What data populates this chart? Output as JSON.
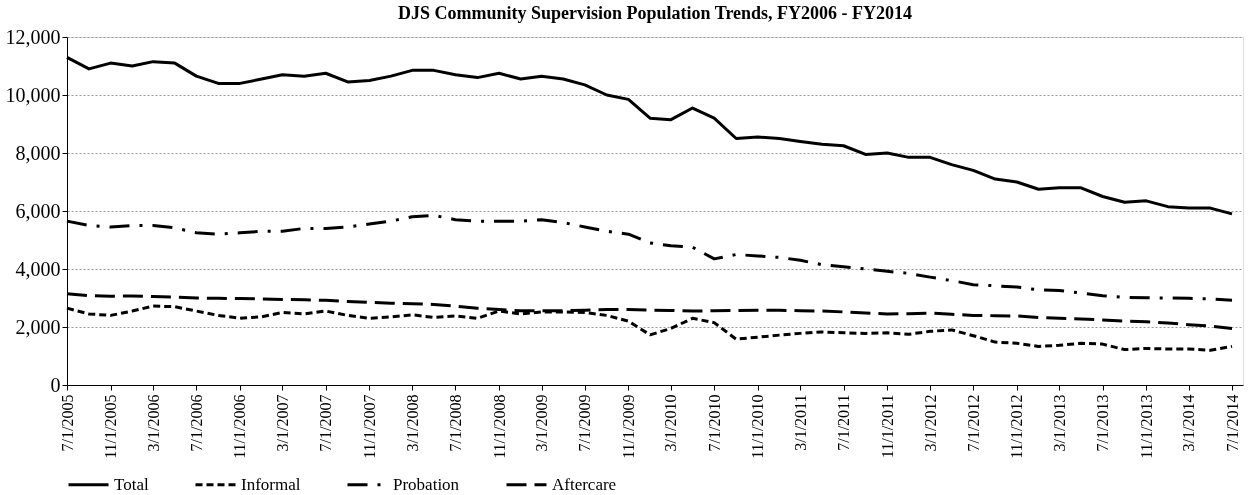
{
  "chart_data": {
    "type": "line",
    "title": "DJS Community Supervision Population Trends, FY2006 - FY2014",
    "x": [
      "2005-07",
      "2005-09",
      "2005-11",
      "2006-01",
      "2006-03",
      "2006-05",
      "2006-07",
      "2006-09",
      "2006-11",
      "2007-01",
      "2007-03",
      "2007-05",
      "2007-07",
      "2007-09",
      "2007-11",
      "2008-01",
      "2008-03",
      "2008-05",
      "2008-07",
      "2008-09",
      "2008-11",
      "2009-01",
      "2009-03",
      "2009-05",
      "2009-07",
      "2009-09",
      "2009-11",
      "2010-01",
      "2010-03",
      "2010-05",
      "2010-07",
      "2010-09",
      "2010-11",
      "2011-01",
      "2011-03",
      "2011-05",
      "2011-07",
      "2011-09",
      "2011-11",
      "2012-01",
      "2012-03",
      "2012-05",
      "2012-07",
      "2012-09",
      "2012-11",
      "2013-01",
      "2013-03",
      "2013-05",
      "2013-07",
      "2013-09",
      "2013-11",
      "2014-01",
      "2014-03",
      "2014-05",
      "2014-07"
    ],
    "series": [
      {
        "name": "Total",
        "color": "#000000",
        "line_style": "solid",
        "values": [
          11300,
          10900,
          11100,
          11000,
          11150,
          11100,
          10650,
          10400,
          10400,
          10550,
          10700,
          10650,
          10750,
          10450,
          10500,
          10650,
          10850,
          10850,
          10700,
          10600,
          10750,
          10550,
          10650,
          10550,
          10350,
          10000,
          9850,
          9200,
          9150,
          9550,
          9200,
          8500,
          8550,
          8500,
          8400,
          8300,
          8250,
          7950,
          8000,
          7850,
          7850,
          7600,
          7400,
          7100,
          7000,
          6750,
          6800,
          6800,
          6500,
          6300,
          6350,
          6150,
          6100,
          6100,
          5900
        ]
      },
      {
        "name": "Informal",
        "color": "#000000",
        "line_style": "dashed",
        "values": [
          2650,
          2450,
          2400,
          2550,
          2720,
          2700,
          2550,
          2400,
          2300,
          2350,
          2500,
          2450,
          2550,
          2400,
          2300,
          2350,
          2420,
          2330,
          2380,
          2300,
          2550,
          2450,
          2520,
          2520,
          2500,
          2400,
          2200,
          1730,
          1950,
          2300,
          2150,
          1580,
          1650,
          1720,
          1780,
          1830,
          1800,
          1780,
          1800,
          1750,
          1850,
          1900,
          1700,
          1480,
          1440,
          1330,
          1370,
          1440,
          1410,
          1220,
          1260,
          1240,
          1240,
          1200,
          1330
        ]
      },
      {
        "name": "Probation",
        "color": "#000000",
        "line_style": "dashdot",
        "values": [
          5650,
          5500,
          5450,
          5500,
          5500,
          5420,
          5250,
          5200,
          5250,
          5300,
          5300,
          5400,
          5400,
          5450,
          5550,
          5650,
          5800,
          5850,
          5700,
          5650,
          5650,
          5650,
          5700,
          5600,
          5450,
          5300,
          5200,
          4900,
          4800,
          4750,
          4350,
          4500,
          4450,
          4400,
          4300,
          4150,
          4080,
          4000,
          3920,
          3850,
          3720,
          3600,
          3460,
          3420,
          3380,
          3280,
          3260,
          3170,
          3080,
          3020,
          3010,
          3000,
          2990,
          2970,
          2920
        ]
      },
      {
        "name": "Aftercare",
        "color": "#000000",
        "line_style": "longdash",
        "values": [
          3150,
          3080,
          3060,
          3070,
          3050,
          3030,
          3000,
          2990,
          2980,
          2970,
          2950,
          2940,
          2920,
          2880,
          2850,
          2820,
          2800,
          2780,
          2720,
          2650,
          2600,
          2560,
          2560,
          2560,
          2580,
          2600,
          2600,
          2580,
          2570,
          2550,
          2560,
          2570,
          2580,
          2580,
          2560,
          2550,
          2520,
          2480,
          2450,
          2460,
          2480,
          2440,
          2400,
          2390,
          2380,
          2330,
          2300,
          2280,
          2240,
          2200,
          2180,
          2140,
          2080,
          2030,
          1950
        ]
      }
    ],
    "xlim": [
      "2005-07",
      "2014-08"
    ],
    "xticks": [
      {
        "value": "2005-07",
        "label": "7/1/2005"
      },
      {
        "value": "2005-11",
        "label": "11/1/2005"
      },
      {
        "value": "2006-03",
        "label": "3/1/2006"
      },
      {
        "value": "2006-07",
        "label": "7/1/2006"
      },
      {
        "value": "2006-11",
        "label": "11/1/2006"
      },
      {
        "value": "2007-03",
        "label": "3/1/2007"
      },
      {
        "value": "2007-07",
        "label": "7/1/2007"
      },
      {
        "value": "2007-11",
        "label": "11/1/2007"
      },
      {
        "value": "2008-03",
        "label": "3/1/2008"
      },
      {
        "value": "2008-07",
        "label": "7/1/2008"
      },
      {
        "value": "2008-11",
        "label": "11/1/2008"
      },
      {
        "value": "2009-03",
        "label": "3/1/2009"
      },
      {
        "value": "2009-07",
        "label": "7/1/2009"
      },
      {
        "value": "2009-11",
        "label": "11/1/2009"
      },
      {
        "value": "2010-03",
        "label": "3/1/2010"
      },
      {
        "value": "2010-07",
        "label": "7/1/2010"
      },
      {
        "value": "2010-11",
        "label": "11/1/2010"
      },
      {
        "value": "2011-03",
        "label": "3/1/2011"
      },
      {
        "value": "2011-07",
        "label": "7/1/2011"
      },
      {
        "value": "2011-11",
        "label": "11/1/2011"
      },
      {
        "value": "2012-03",
        "label": "3/1/2012"
      },
      {
        "value": "2012-07",
        "label": "7/1/2012"
      },
      {
        "value": "2012-11",
        "label": "11/1/2012"
      },
      {
        "value": "2013-03",
        "label": "3/1/2013"
      },
      {
        "value": "2013-07",
        "label": "7/1/2013"
      },
      {
        "value": "2013-11",
        "label": "11/1/2013"
      },
      {
        "value": "2014-03",
        "label": "3/1/2014"
      },
      {
        "value": "2014-07",
        "label": "7/1/2014"
      }
    ],
    "ylim": [
      0,
      12000
    ],
    "yticks": [
      0,
      {
        "value": 2000,
        "label": "2,000"
      },
      {
        "value": 4000,
        "label": "4,000"
      },
      {
        "value": 6000,
        "label": "6,000"
      },
      {
        "value": 8000,
        "label": "8,000"
      },
      {
        "value": 10000,
        "label": "10,000"
      },
      {
        "value": 12000,
        "label": "12,000"
      }
    ],
    "grid": "y",
    "legend": "bottom",
    "marker": "none"
  }
}
